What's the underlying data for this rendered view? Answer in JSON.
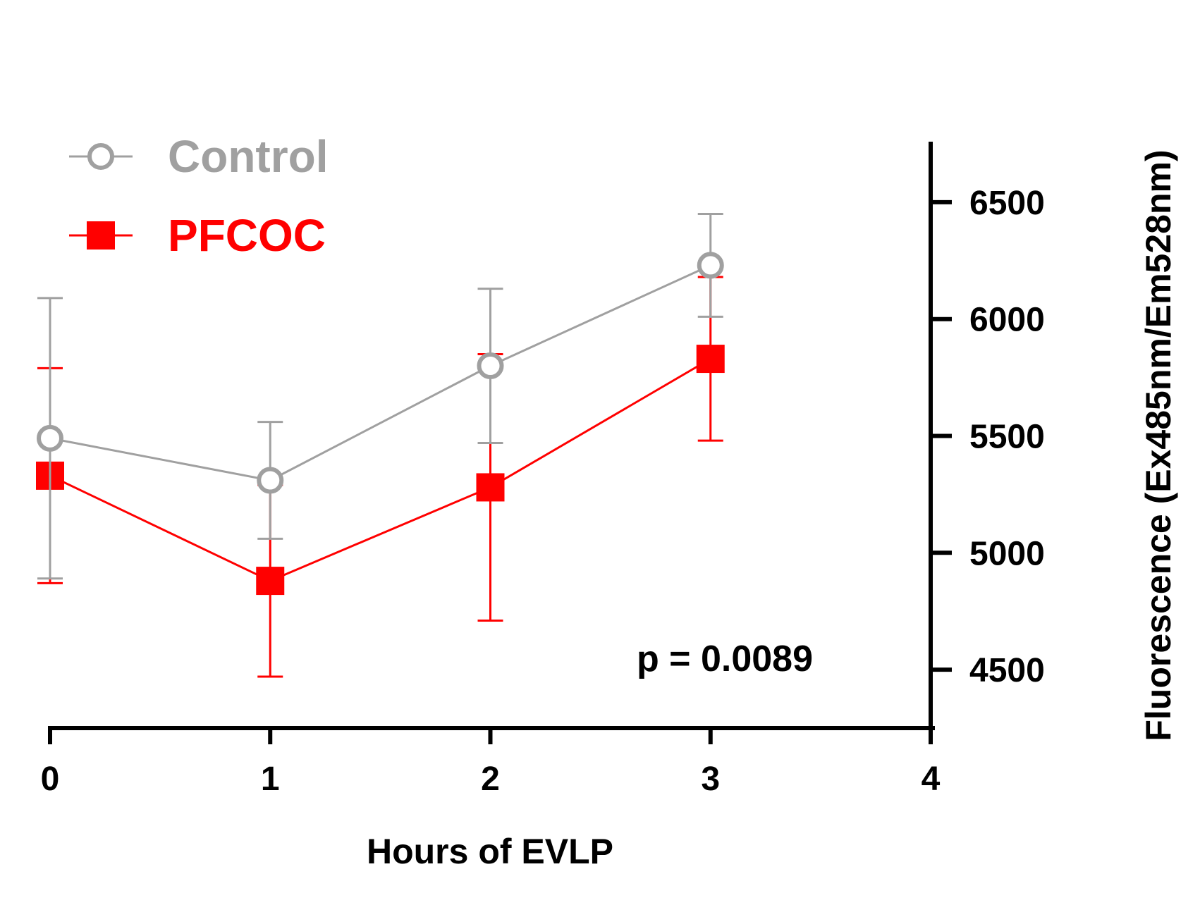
{
  "chart_data": {
    "type": "line",
    "xlabel": "Hours of EVLP",
    "ylabel": "Fluorescence (Ex485nm/Em528nm)",
    "xlim": [
      0,
      4
    ],
    "ylim": [
      4250,
      6750
    ],
    "x_ticks": [
      0,
      1,
      2,
      3,
      4
    ],
    "y_ticks": [
      4500,
      5000,
      5500,
      6000,
      6500
    ],
    "y_axis_position": "right",
    "grid": false,
    "legend_position": "top-left",
    "annotation": "p = 0.0089",
    "series": [
      {
        "name": "Control",
        "color": "#a0a0a0",
        "marker": "open-circle",
        "x": [
          0,
          1,
          2,
          3
        ],
        "y": [
          5490,
          5310,
          5800,
          6230
        ],
        "error": [
          600,
          250,
          330,
          220
        ]
      },
      {
        "name": "PFCOC",
        "color": "#ff0000",
        "marker": "filled-square",
        "x": [
          0,
          1,
          2,
          3
        ],
        "y": [
          5330,
          4880,
          5280,
          5830
        ],
        "error": [
          460,
          410,
          570,
          350
        ]
      }
    ]
  }
}
